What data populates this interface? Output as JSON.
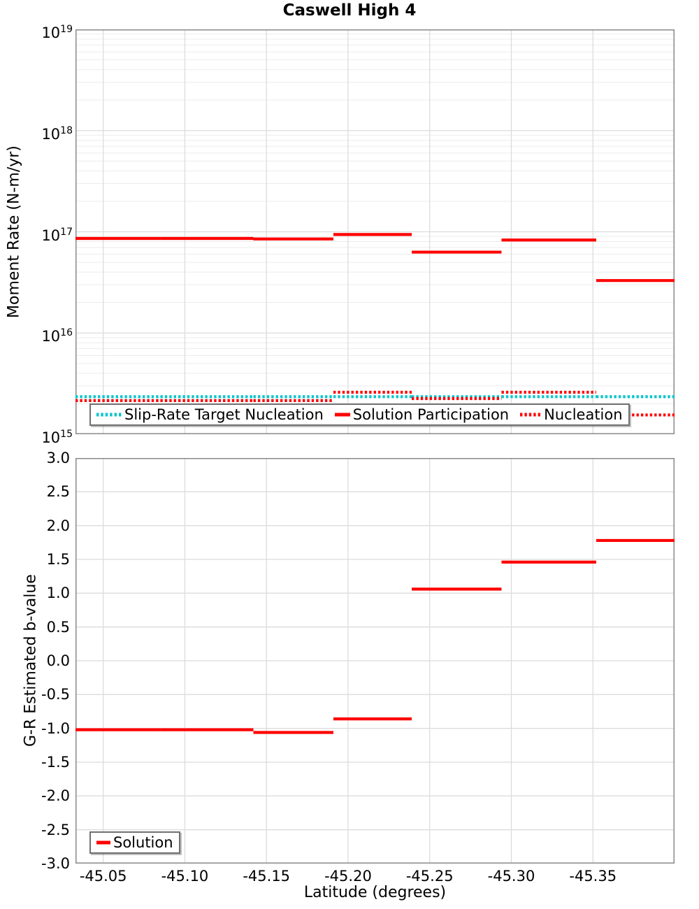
{
  "chart_data": [
    {
      "type": "line",
      "subtype": "step-segments",
      "title": "Caswell High 4",
      "ylabel": "Moment Rate (N-m/yr)",
      "yscale": "log",
      "ylim": [
        1000000000000000.0,
        1e+19
      ],
      "xlim": [
        -45.033,
        -45.4
      ],
      "grid": true,
      "legend_position": "bottom-left-inside",
      "x_ticks": [
        {
          "value": -45.05,
          "label": "-45.05"
        },
        {
          "value": -45.1,
          "label": "-45.10"
        },
        {
          "value": -45.15,
          "label": "-45.15"
        },
        {
          "value": -45.2,
          "label": "-45.20"
        },
        {
          "value": -45.25,
          "label": "-45.25"
        },
        {
          "value": -45.3,
          "label": "-45.30"
        },
        {
          "value": -45.35,
          "label": "-45.35"
        }
      ],
      "y_ticks": [
        {
          "exp": "19"
        },
        {
          "exp": "18"
        },
        {
          "exp": "17"
        },
        {
          "exp": "16"
        },
        {
          "exp": "15"
        }
      ],
      "section_bounds": [
        [
          -45.033,
          -45.085
        ],
        [
          -45.085,
          -45.142
        ],
        [
          -45.142,
          -45.191
        ],
        [
          -45.191,
          -45.239
        ],
        [
          -45.239,
          -45.294
        ],
        [
          -45.294,
          -45.352
        ],
        [
          -45.352,
          -45.4
        ]
      ],
      "series": [
        {
          "name": "Slip-Rate Target Nucleation",
          "color": "#00c5cb",
          "style": "dotted",
          "values": [
            2350000000000000.0,
            2350000000000000.0,
            2350000000000000.0,
            2350000000000000.0,
            2350000000000000.0,
            2350000000000000.0,
            2350000000000000.0
          ]
        },
        {
          "name": "Solution Participation",
          "color": "#ff0000",
          "style": "solid",
          "values": [
            8.6e+16,
            8.6e+16,
            8.5e+16,
            9.4e+16,
            6.3e+16,
            8.3e+16,
            3.3e+16
          ]
        },
        {
          "name": "Nucleation",
          "color": "#ff0000",
          "style": "dotted",
          "values": [
            2150000000000000.0,
            2150000000000000.0,
            2150000000000000.0,
            2600000000000000.0,
            2250000000000000.0,
            2600000000000000.0,
            1550000000000000.0
          ]
        }
      ]
    },
    {
      "type": "line",
      "subtype": "step-segments",
      "xlabel": "Latitude (degrees)",
      "ylabel": "G-R Estimated b-value",
      "yscale": "linear",
      "ylim": [
        -3.0,
        3.0
      ],
      "grid": true,
      "legend_position": "bottom-left-inside",
      "y_ticks": [
        {
          "value": 3.0,
          "label": "3.0"
        },
        {
          "value": 2.5,
          "label": "2.5"
        },
        {
          "value": 2.0,
          "label": "2.0"
        },
        {
          "value": 1.5,
          "label": "1.5"
        },
        {
          "value": 1.0,
          "label": "1.0"
        },
        {
          "value": 0.5,
          "label": "0.5"
        },
        {
          "value": 0.0,
          "label": "0.0"
        },
        {
          "value": -0.5,
          "label": "-0.5"
        },
        {
          "value": -1.0,
          "label": "-1.0"
        },
        {
          "value": -1.5,
          "label": "-1.5"
        },
        {
          "value": -2.0,
          "label": "-2.0"
        },
        {
          "value": -2.5,
          "label": "-2.5"
        },
        {
          "value": -3.0,
          "label": "-3.0"
        }
      ],
      "series": [
        {
          "name": "Solution",
          "color": "#ff0000",
          "style": "solid",
          "values": [
            -1.02,
            -1.02,
            -1.06,
            -0.86,
            1.06,
            1.46,
            1.78
          ]
        }
      ]
    }
  ],
  "colors": {
    "solution_red": "#ff0000",
    "target_cyan": "#00c5cb",
    "grid_minor": "#ececec",
    "grid_major": "#dcdcdc",
    "plot_border": "#8a8a8a"
  }
}
